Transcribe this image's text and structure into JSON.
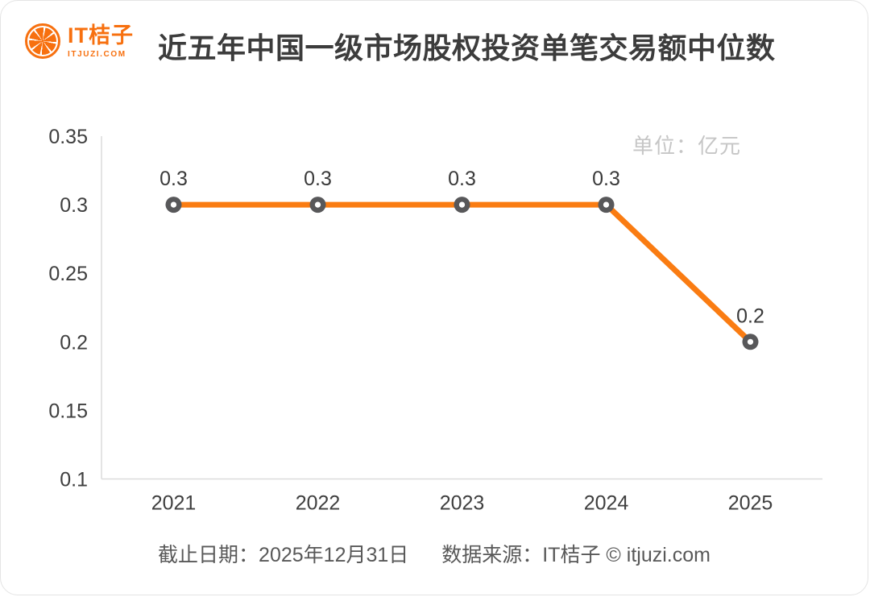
{
  "header": {
    "logo_brand": "IT桔子",
    "logo_domain": "ITJUZI.COM",
    "title": "近五年中国一级市场股权投资单笔交易额中位数"
  },
  "chart_data": {
    "type": "line",
    "title": "近五年中国一级市场股权投资单笔交易额中位数",
    "unit_label": "单位：亿元",
    "categories": [
      "2021",
      "2022",
      "2023",
      "2024",
      "2025"
    ],
    "series": [
      {
        "name": "单笔交易额中位数",
        "values": [
          0.3,
          0.3,
          0.3,
          0.3,
          0.2
        ],
        "data_labels": [
          "0.3",
          "0.3",
          "0.3",
          "0.3",
          "0.2"
        ]
      }
    ],
    "ylim": [
      0.1,
      0.35
    ],
    "ytick_labels": [
      "0.1",
      "0.15",
      "0.2",
      "0.25",
      "0.3",
      "0.35"
    ],
    "yticks": [
      0.1,
      0.15,
      0.2,
      0.25,
      0.3,
      0.35
    ],
    "grid": false,
    "legend": "none",
    "line_color": "#FA7C12",
    "marker_color": "#58585A",
    "marker_inner_color": "#FFFFFF",
    "axis_color": "#DCDCDC",
    "tick_text_color": "#3F3F3F",
    "data_label_color": "#3A3A3A"
  },
  "footer": {
    "date_label": "截止日期：2025年12月31日",
    "source_label": "数据来源：IT桔子 © itjuzi.com"
  },
  "colors": {
    "brand_orange": "#F7700F",
    "title_text": "#3C3C3C",
    "unit_text": "#C6C6C6",
    "footer_text": "#585858"
  }
}
